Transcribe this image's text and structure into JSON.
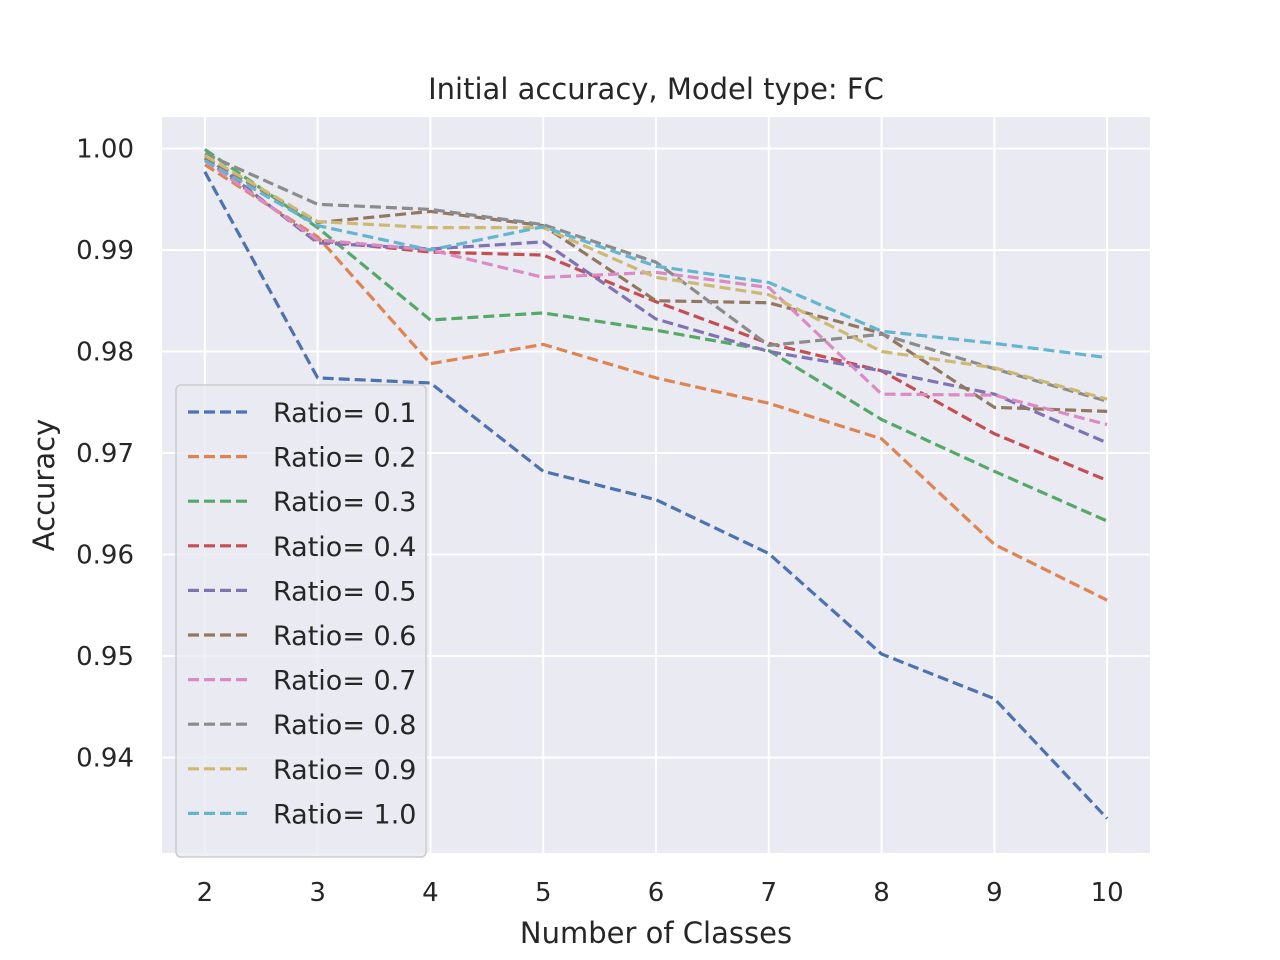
{
  "chart_data": {
    "type": "line",
    "title": "Initial accuracy, Model type: FC",
    "xlabel": "Number of Classes",
    "ylabel": "Accuracy",
    "x": [
      2,
      3,
      4,
      5,
      6,
      7,
      8,
      9,
      10
    ],
    "xlim": [
      1.62,
      10.38
    ],
    "ylim": [
      0.9306,
      1.0031
    ],
    "xticks": [
      "2",
      "3",
      "4",
      "5",
      "6",
      "7",
      "8",
      "9",
      "10"
    ],
    "yticks": [
      "0.94",
      "0.95",
      "0.96",
      "0.97",
      "0.98",
      "0.99",
      "1.00"
    ],
    "grid": true,
    "legend_position": "lower-left",
    "line_style": "dashed",
    "background": "#eaeaf2",
    "series": [
      {
        "name": "Ratio= 0.1",
        "color": "#4c72b0",
        "values": [
          0.9977,
          0.9774,
          0.9769,
          0.9682,
          0.9654,
          0.9601,
          0.9502,
          0.9458,
          0.934
        ]
      },
      {
        "name": "Ratio= 0.2",
        "color": "#dd8452",
        "values": [
          0.9984,
          0.9913,
          0.9788,
          0.9807,
          0.9774,
          0.9749,
          0.9714,
          0.961,
          0.9555
        ]
      },
      {
        "name": "Ratio= 0.3",
        "color": "#55a868",
        "values": [
          0.9999,
          0.9922,
          0.9831,
          0.9838,
          0.9821,
          0.9801,
          0.9733,
          0.9682,
          0.9633
        ]
      },
      {
        "name": "Ratio= 0.4",
        "color": "#c44e52",
        "values": [
          0.999,
          0.9909,
          0.9898,
          0.9895,
          0.9849,
          0.9808,
          0.9781,
          0.9719,
          0.9673
        ]
      },
      {
        "name": "Ratio= 0.5",
        "color": "#8172b3",
        "values": [
          0.9993,
          0.9907,
          0.9901,
          0.9908,
          0.9832,
          0.98,
          0.9781,
          0.9758,
          0.971
        ]
      },
      {
        "name": "Ratio= 0.6",
        "color": "#937860",
        "values": [
          0.9991,
          0.9927,
          0.9938,
          0.9924,
          0.985,
          0.9848,
          0.9818,
          0.9745,
          0.9741
        ]
      },
      {
        "name": "Ratio= 0.7",
        "color": "#da8bc3",
        "values": [
          0.9988,
          0.991,
          0.99,
          0.9873,
          0.9878,
          0.9863,
          0.9758,
          0.9757,
          0.9728
        ]
      },
      {
        "name": "Ratio= 0.8",
        "color": "#8c8c8c",
        "values": [
          0.9995,
          0.9945,
          0.994,
          0.9925,
          0.9888,
          0.9806,
          0.9817,
          0.9783,
          0.9751
        ]
      },
      {
        "name": "Ratio= 0.9",
        "color": "#ccb974",
        "values": [
          0.9993,
          0.9928,
          0.9922,
          0.9922,
          0.9873,
          0.9856,
          0.98,
          0.9784,
          0.9753
        ]
      },
      {
        "name": "Ratio= 1.0",
        "color": "#64b5cd",
        "values": [
          0.9988,
          0.9924,
          0.99,
          0.9923,
          0.9884,
          0.9868,
          0.982,
          0.9808,
          0.9794
        ]
      }
    ]
  }
}
